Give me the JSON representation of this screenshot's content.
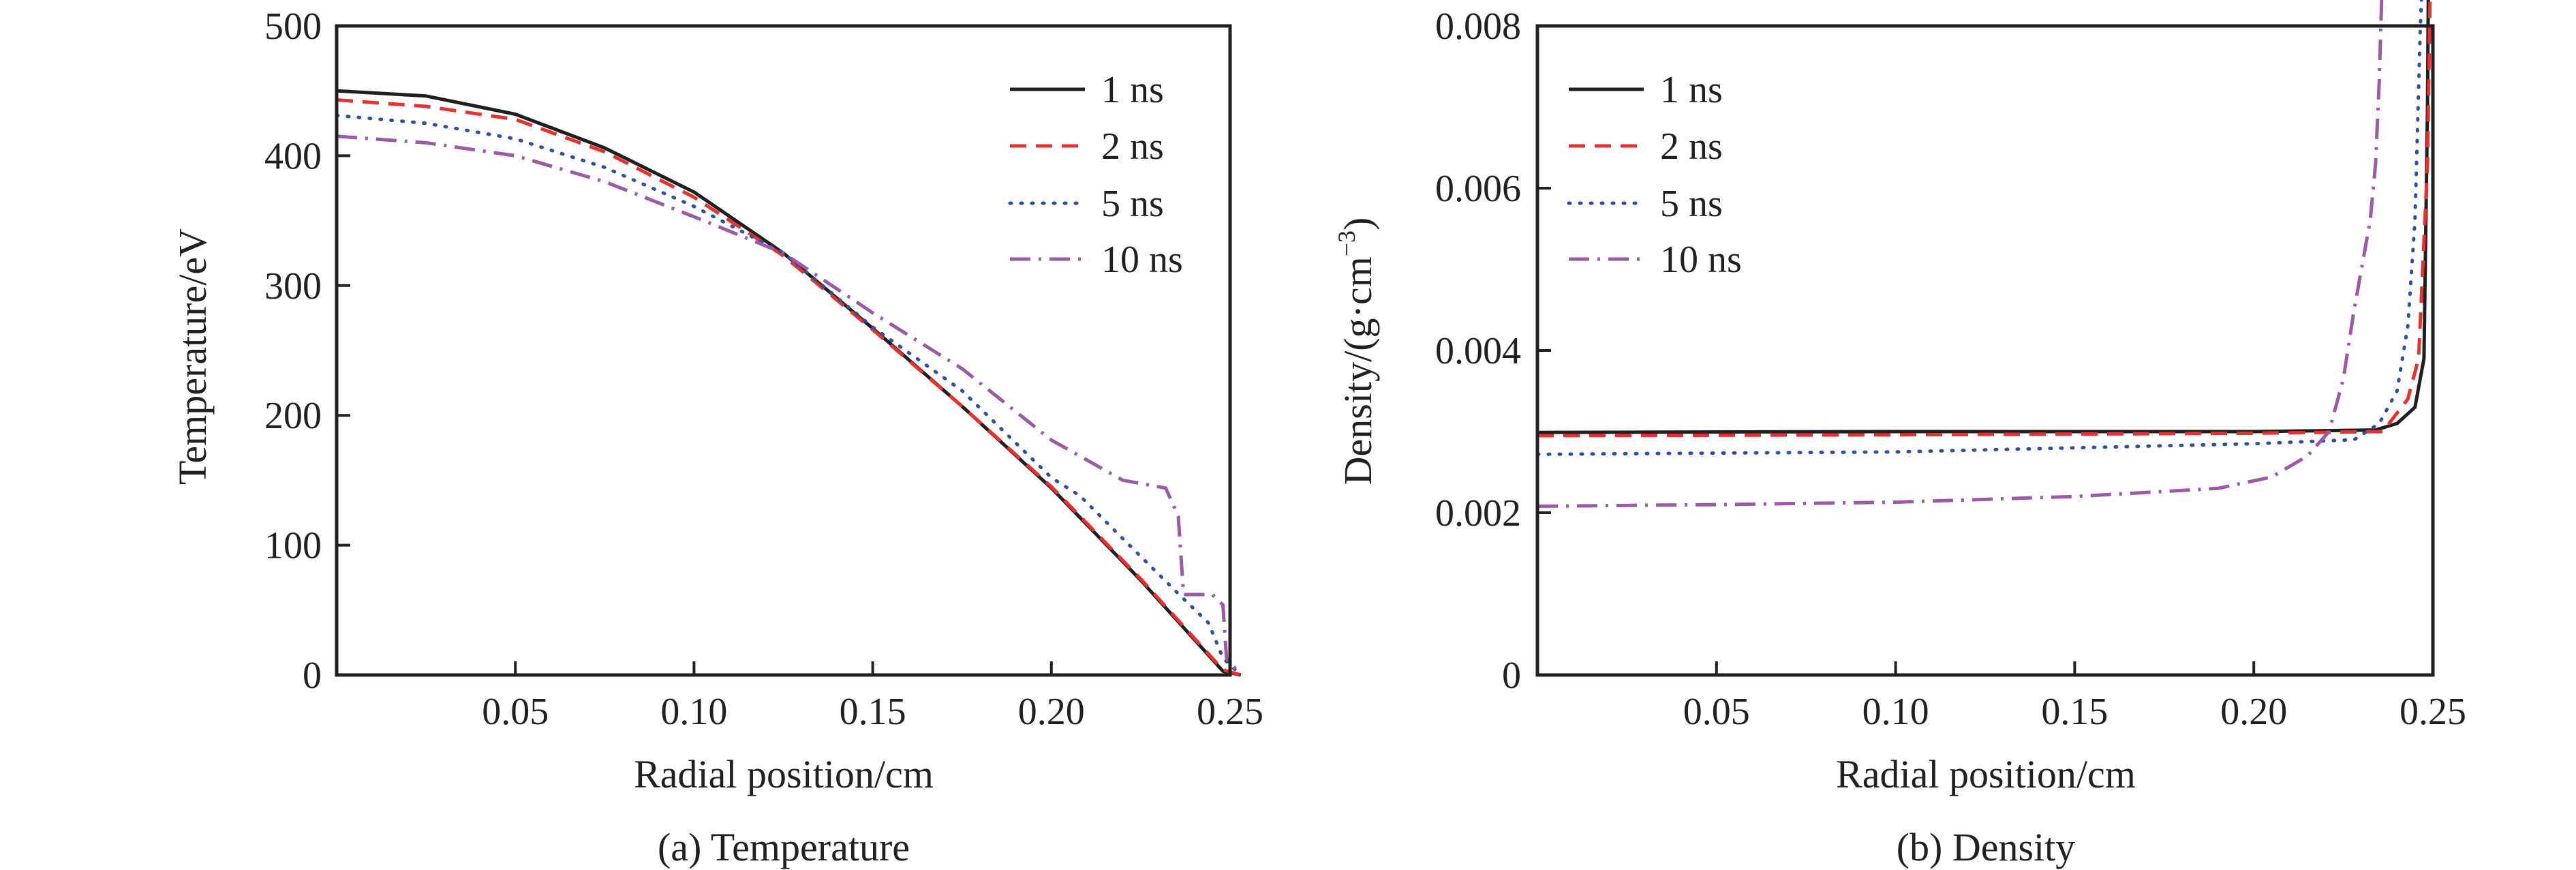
{
  "series_styles": [
    {
      "name": "1 ns",
      "color": "#1f1f1f",
      "dash": "solid"
    },
    {
      "name": "2 ns",
      "color": "#e8312f",
      "dash": "dashed"
    },
    {
      "name": "5 ns",
      "color": "#2d4f9e",
      "dash": "dotted"
    },
    {
      "name": "10 ns",
      "color": "#9b5aa6",
      "dash": "dashdot"
    }
  ],
  "chart_data": [
    {
      "type": "line",
      "caption": "(a) Temperature",
      "xlabel": "Radial position/cm",
      "ylabel": "Temperature/eV",
      "xlim": [
        0,
        0.25
      ],
      "ylim": [
        0,
        500
      ],
      "xticks": [
        0.05,
        0.1,
        0.15,
        0.2,
        0.25
      ],
      "xtick_labels": [
        "0.05",
        "0.10",
        "0.15",
        "0.20",
        "0.25"
      ],
      "yticks": [
        0,
        100,
        200,
        300,
        400,
        500
      ],
      "ytick_labels": [
        "0",
        "100",
        "200",
        "300",
        "400",
        "500"
      ],
      "legend": {
        "placement": "top-right",
        "entries": [
          "1 ns",
          "2 ns",
          "5 ns",
          "10 ns"
        ]
      },
      "series": [
        {
          "name": "1 ns",
          "x": [
            0,
            0.025,
            0.05,
            0.075,
            0.1,
            0.125,
            0.15,
            0.175,
            0.2,
            0.225,
            0.248,
            0.253
          ],
          "y": [
            450,
            446,
            432,
            406,
            372,
            325,
            267,
            207,
            144,
            73,
            3,
            0
          ]
        },
        {
          "name": "2 ns",
          "x": [
            0,
            0.025,
            0.05,
            0.075,
            0.1,
            0.125,
            0.15,
            0.175,
            0.2,
            0.225,
            0.248,
            0.253
          ],
          "y": [
            443,
            438,
            428,
            403,
            368,
            323,
            266,
            207,
            145,
            74,
            4,
            0
          ]
        },
        {
          "name": "5 ns",
          "x": [
            0,
            0.025,
            0.05,
            0.075,
            0.1,
            0.125,
            0.15,
            0.175,
            0.2,
            0.208,
            0.22,
            0.235,
            0.244,
            0.248,
            0.253
          ],
          "y": [
            431,
            425,
            413,
            391,
            361,
            325,
            268,
            219,
            152,
            138,
            105,
            64,
            40,
            13,
            0
          ]
        },
        {
          "name": "10 ns",
          "x": [
            0,
            0.025,
            0.05,
            0.075,
            0.1,
            0.125,
            0.15,
            0.175,
            0.2,
            0.22,
            0.232,
            0.2355,
            0.237,
            0.245,
            0.248,
            0.249,
            0.253
          ],
          "y": [
            415,
            410,
            400,
            380,
            353,
            325,
            279,
            236,
            181,
            150,
            144,
            122,
            62,
            62,
            54,
            13,
            0
          ]
        }
      ]
    },
    {
      "type": "line",
      "caption": "(b)  Density",
      "xlabel": "Radial position/cm",
      "ylabel": "Density/(g·cm",
      "ylabel_sup": "−3",
      "ylabel_end": ")",
      "xlim": [
        0,
        0.25
      ],
      "ylim": [
        0,
        0.008
      ],
      "xticks": [
        0.05,
        0.1,
        0.15,
        0.2,
        0.25
      ],
      "xtick_labels": [
        "0.05",
        "0.10",
        "0.15",
        "0.20",
        "0.25"
      ],
      "yticks": [
        0,
        0.002,
        0.004,
        0.006,
        0.008
      ],
      "ytick_labels": [
        "0",
        "0.002",
        "0.004",
        "0.006",
        "0.008"
      ],
      "legend": {
        "placement": "top-left",
        "entries": [
          "1 ns",
          "2 ns",
          "5 ns",
          "10 ns"
        ]
      },
      "series": [
        {
          "name": "1 ns",
          "x": [
            0,
            0.1,
            0.2,
            0.234,
            0.24,
            0.245,
            0.2475,
            0.2485,
            0.2487
          ],
          "y": [
            0.00299,
            0.003,
            0.003,
            0.00302,
            0.0031,
            0.0033,
            0.0039,
            0.007,
            0.0085
          ]
        },
        {
          "name": "2 ns",
          "x": [
            0,
            0.1,
            0.2,
            0.236,
            0.243,
            0.246,
            0.2485,
            0.2492
          ],
          "y": [
            0.00295,
            0.00296,
            0.00298,
            0.003,
            0.0034,
            0.0039,
            0.0063,
            0.0085
          ]
        },
        {
          "name": "5 ns",
          "x": [
            0,
            0.1,
            0.2,
            0.228,
            0.235,
            0.24,
            0.243,
            0.245,
            0.2465,
            0.2468
          ],
          "y": [
            0.00272,
            0.00275,
            0.00285,
            0.0029,
            0.0031,
            0.0035,
            0.0043,
            0.0056,
            0.008,
            0.0085
          ]
        },
        {
          "name": "10 ns",
          "x": [
            0,
            0.05,
            0.1,
            0.15,
            0.19,
            0.205,
            0.215,
            0.221,
            0.225,
            0.228,
            0.2325,
            0.234,
            0.235,
            0.2357
          ],
          "y": [
            0.00208,
            0.0021,
            0.00213,
            0.0022,
            0.0023,
            0.00244,
            0.0027,
            0.003,
            0.00365,
            0.0045,
            0.0056,
            0.0063,
            0.0073,
            0.0085
          ]
        }
      ]
    }
  ]
}
